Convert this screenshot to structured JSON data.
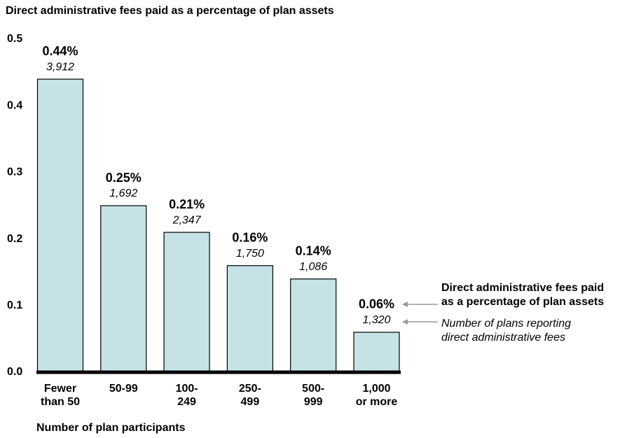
{
  "chart_data": {
    "type": "bar",
    "title": "Direct administrative fees paid as a percentage of plan assets",
    "x_label": "Number of plan participants",
    "categories": [
      "Fewer\nthan 50",
      "50-99",
      "100-\n249",
      "250-\n499",
      "500-\n999",
      "1,000\nor more"
    ],
    "values": [
      0.44,
      0.25,
      0.21,
      0.16,
      0.14,
      0.06
    ],
    "value_labels": [
      "0.44%",
      "0.25%",
      "0.21%",
      "0.16%",
      "0.14%",
      "0.06%"
    ],
    "plan_counts": [
      "3,912",
      "1,692",
      "2,347",
      "1,750",
      "1,086",
      "1,320"
    ],
    "color": "#c5e3e6",
    "ylim": [
      0,
      0.5
    ],
    "yticks": [
      {
        "value": 0,
        "label": "0.0"
      },
      0.1,
      0.2,
      0.3,
      0.4,
      0.5
    ],
    "legend": {
      "value_label": "Direct administrative fees paid\nas a percentage of plan assets",
      "count_label": "Number of plans reporting\ndirect administrative fees"
    }
  }
}
